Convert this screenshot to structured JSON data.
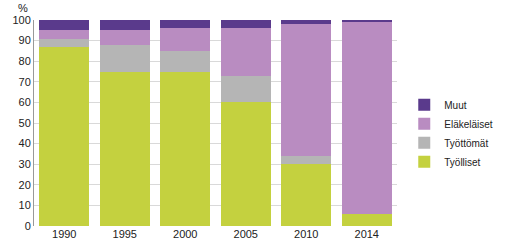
{
  "chart_data": {
    "type": "bar",
    "stacked": true,
    "ylabel": "%",
    "categories": [
      "1990",
      "1995",
      "2000",
      "2005",
      "2010",
      "2014"
    ],
    "series": [
      {
        "name": "Työlliset",
        "color": "#c4d13f",
        "values": [
          87,
          75,
          75,
          60,
          30,
          6
        ]
      },
      {
        "name": "Työttömät",
        "color": "#b5b5b5",
        "values": [
          4,
          13,
          10,
          13,
          4,
          0
        ]
      },
      {
        "name": "Eläkeläiset",
        "color": "#b98cc1",
        "values": [
          4,
          7,
          11,
          23,
          64,
          93
        ]
      },
      {
        "name": "Muut",
        "color": "#5a3a8c",
        "values": [
          5,
          5,
          4,
          4,
          2,
          1
        ]
      }
    ],
    "ylim": [
      0,
      100
    ],
    "yticks": [
      0,
      10,
      20,
      30,
      40,
      50,
      60,
      70,
      80,
      90,
      100
    ],
    "grid": true,
    "legend": "right"
  }
}
